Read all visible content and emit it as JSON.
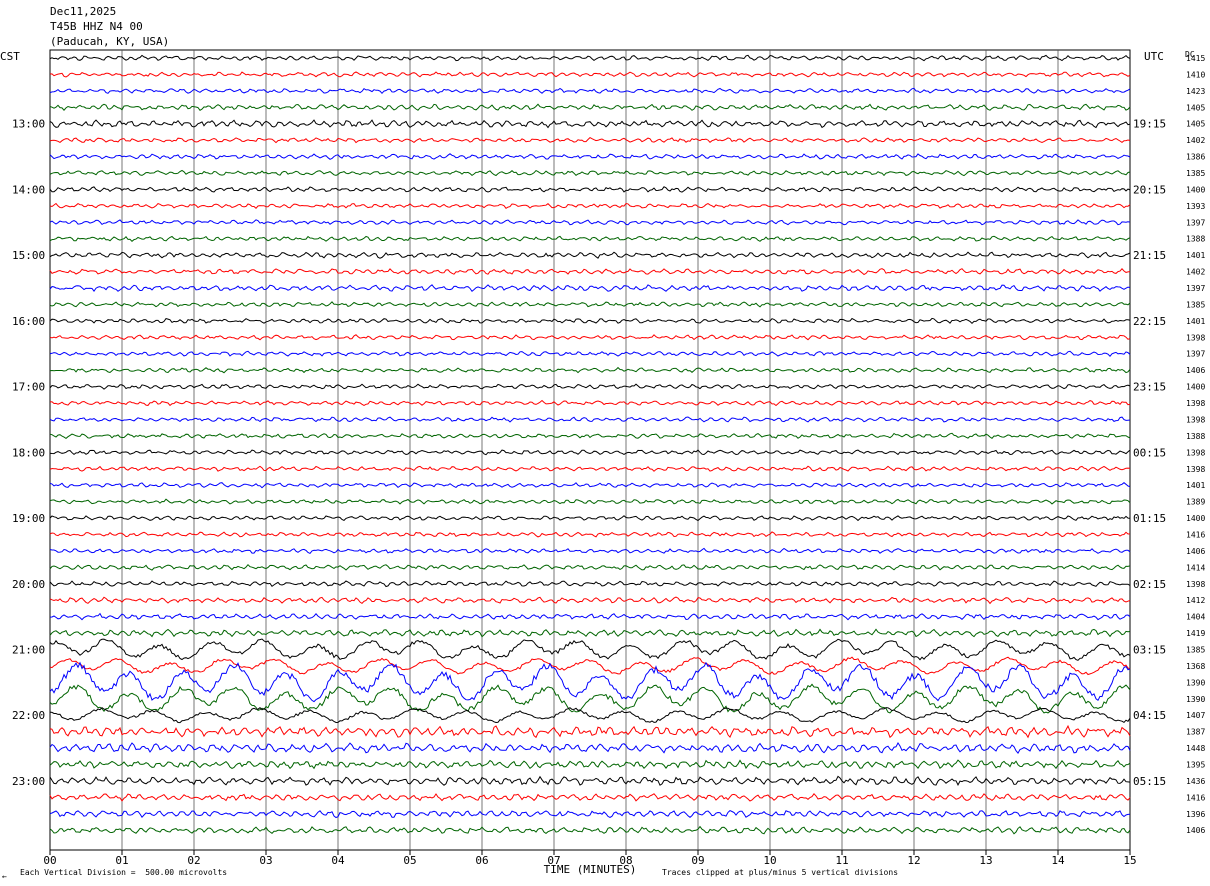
{
  "header": {
    "date": "Dec11,2025",
    "station": "T45B HHZ N4 00",
    "location": "(Paducah, KY, USA)",
    "left_tz": "CST",
    "right_tz": "UTC",
    "dc_label": "DC"
  },
  "footer": {
    "scale_note": "Each Vertical Division =  500.00 microvolts",
    "clip_note": "Traces clipped at plus/minus 5 vertical divisions",
    "corner_mark": "←"
  },
  "chart_data": {
    "type": "line",
    "xlabel": "TIME (MINUTES)",
    "x_ticks": [
      "00",
      "01",
      "02",
      "03",
      "04",
      "05",
      "06",
      "07",
      "08",
      "09",
      "10",
      "11",
      "12",
      "13",
      "14",
      "15"
    ],
    "xlim": [
      0,
      15
    ],
    "trace_colors": [
      "#000000",
      "#ff0000",
      "#0000ff",
      "#006400"
    ],
    "left_hour_labels": [
      "13:00",
      "14:00",
      "15:00",
      "16:00",
      "17:00",
      "18:00",
      "19:00",
      "20:00",
      "21:00",
      "22:00",
      "23:00"
    ],
    "right_hour_labels": [
      "19:15",
      "20:15",
      "21:15",
      "22:15",
      "23:15",
      "00:15",
      "01:15",
      "02:15",
      "03:15",
      "04:15",
      "05:15"
    ],
    "dc_offsets": [
      1415,
      1410,
      1423,
      1405,
      1405,
      1402,
      1386,
      1385,
      1400,
      1393,
      1397,
      1388,
      1401,
      1402,
      1397,
      1385,
      1401,
      1398,
      1397,
      1406,
      1400,
      1398,
      1398,
      1388,
      1398,
      1398,
      1401,
      1389,
      1400,
      1416,
      1406,
      1414,
      1398,
      1412,
      1404,
      1419,
      1385,
      1368,
      1390,
      1390,
      1407,
      1387,
      1448,
      1395,
      1436,
      1416,
      1396,
      1406
    ],
    "trace_amplitude": [
      2.2,
      2.0,
      2.0,
      2.5,
      3.0,
      2.0,
      2.2,
      2.0,
      2.2,
      2.0,
      2.0,
      2.0,
      2.4,
      2.4,
      2.6,
      2.0,
      2.0,
      2.0,
      2.0,
      2.0,
      2.0,
      2.0,
      2.0,
      2.0,
      2.0,
      2.0,
      2.0,
      2.0,
      2.0,
      2.0,
      2.0,
      2.2,
      2.2,
      2.5,
      2.5,
      3.0,
      9.0,
      7.0,
      16.0,
      12.0,
      6.0,
      4.5,
      4.0,
      3.5,
      3.5,
      3.0,
      3.0,
      3.0
    ]
  }
}
